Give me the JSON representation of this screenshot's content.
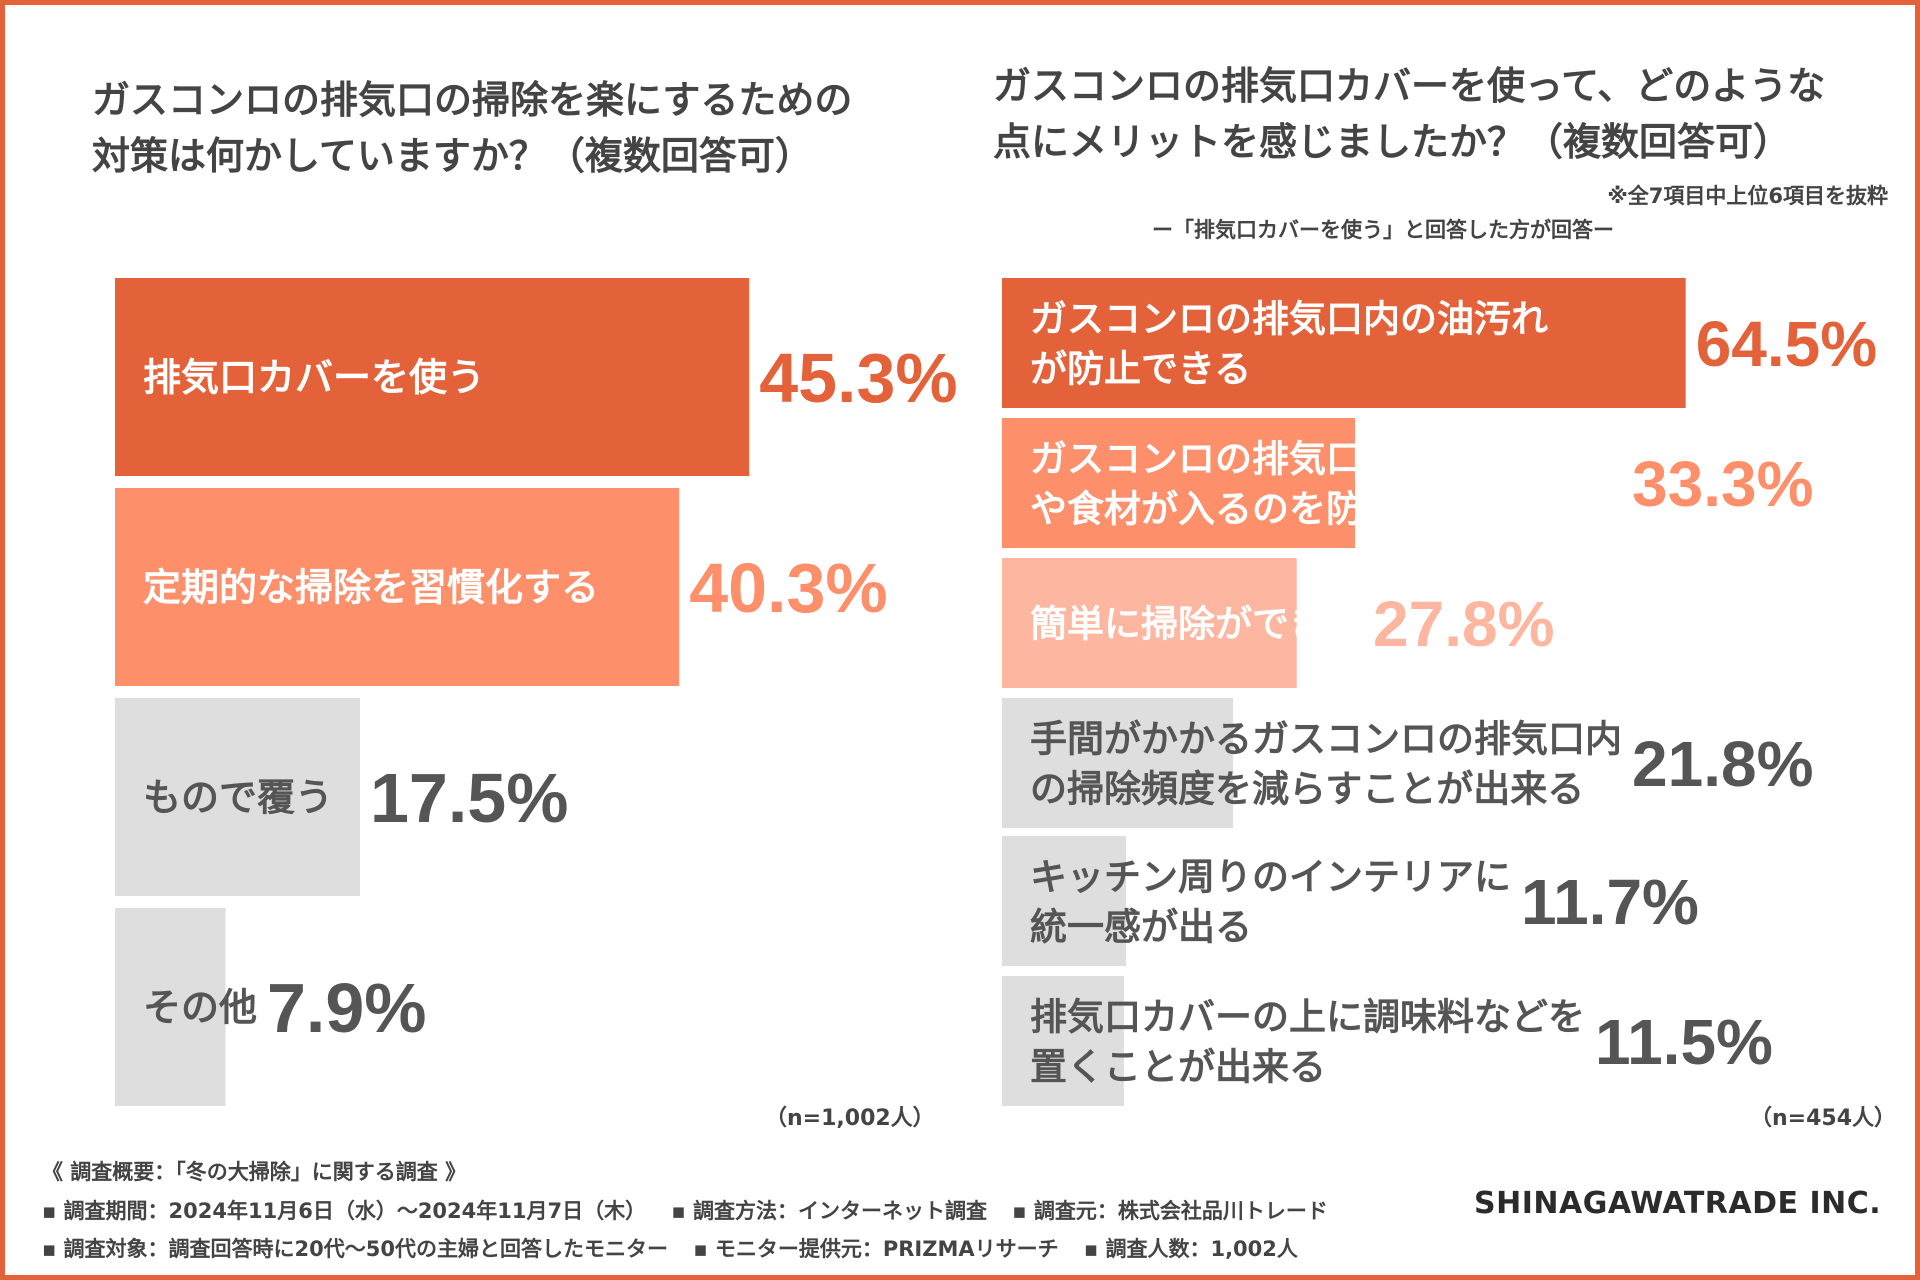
{
  "chart_data": [
    {
      "type": "bar",
      "orientation": "horizontal",
      "title_lines": [
        "ガスコンロの排気口の掃除を楽にするための",
        "対策は何かしていますか？（複数回答可）"
      ],
      "categories": [
        [
          "排気口カバーを使う"
        ],
        [
          "定期的な掃除を習慣化する"
        ],
        [
          "もので覆う"
        ],
        [
          "その他"
        ]
      ],
      "values": [
        45.3,
        40.3,
        17.5,
        7.9
      ],
      "value_labels": [
        "45.3%",
        "40.3%",
        "17.5%",
        "7.9%"
      ],
      "unit": "%",
      "sample": "（n=1,002人）",
      "colors": [
        "#e4623a",
        "#fd8f6b",
        "#dedede",
        "#dedede"
      ]
    },
    {
      "type": "bar",
      "orientation": "horizontal",
      "title_lines": [
        "ガスコンロの排気口カバーを使って、どのような",
        "点にメリットを感じましたか？（複数回答可）"
      ],
      "note": "※全7項目中上位6項目を抜粋",
      "subtitle": "ー「排気口カバーを使う」と回答した方が回答ー",
      "categories": [
        [
          "ガスコンロの排気口内の油汚れ",
          "が防止できる"
        ],
        [
          "ガスコンロの排気口内に小さなゴミ",
          "や食材が入るのを防止できる"
        ],
        [
          "簡単に掃除ができる"
        ],
        [
          "手間がかかるガスコンロの排気口内",
          "の掃除頻度を減らすことが出来る"
        ],
        [
          "キッチン周りのインテリアに",
          "統一感が出る"
        ],
        [
          "排気口カバーの上に調味料などを",
          "置くことが出来る"
        ]
      ],
      "values": [
        64.5,
        33.3,
        27.8,
        21.8,
        11.7,
        11.5
      ],
      "value_labels": [
        "64.5%",
        "33.3%",
        "27.8%",
        "21.8%",
        "11.7%",
        "11.5%"
      ],
      "unit": "%",
      "sample": "（n=454人）",
      "colors": [
        "#e4623a",
        "#fd8f6b",
        "#fdb69f",
        "#dedede",
        "#dedede",
        "#dedede"
      ]
    }
  ],
  "colors": {
    "frame": "#e4623a",
    "text_dark": "#444444",
    "value_gray": "#555555"
  },
  "survey": {
    "heading": "《 調査概要：「冬の大掃除」に関する調査 》",
    "line1": [
      "▪ 調査期間：2024年11月6日（水）〜2024年11月7日（木）",
      "▪ 調査方法：インターネット調査",
      "▪ 調査元：株式会社品川トレード"
    ],
    "line2": [
      "▪ 調査対象：調査回答時に20代〜50代の主婦と回答したモニター",
      "▪ モニター提供元：PRIZMAリサーチ",
      "▪ 調査人数：1,002人"
    ]
  },
  "company": "SHINAGAWATRADE INC."
}
